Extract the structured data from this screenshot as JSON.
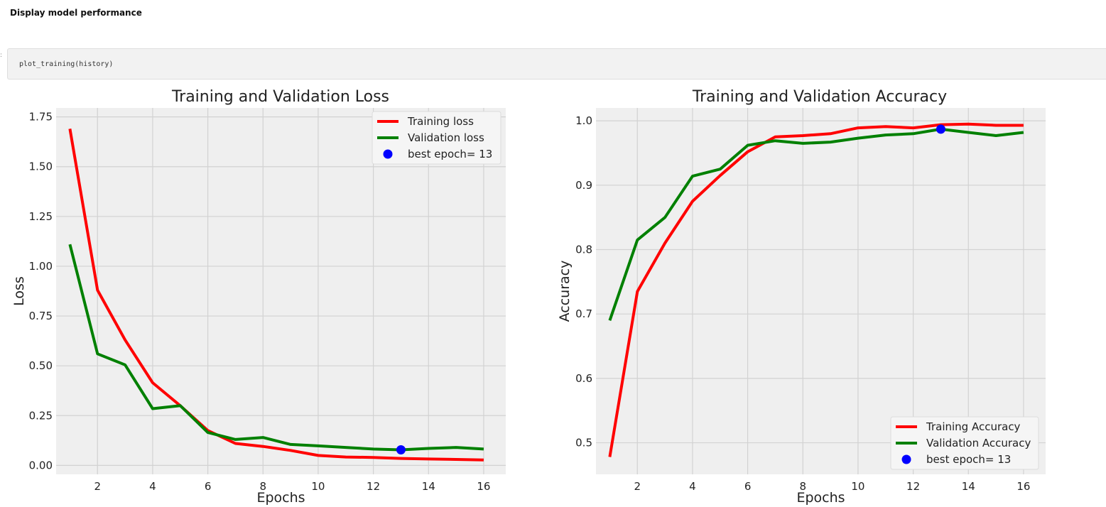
{
  "header": {
    "title": "Display model performance"
  },
  "code_cell": {
    "code": "plot_training(history)"
  },
  "colors": {
    "training": "#ff0000",
    "validation": "#008000",
    "best": "#0000ff",
    "plot_bg": "#efefef",
    "grid": "#d2d2d2"
  },
  "chart_data": [
    {
      "type": "line",
      "title": "Training and Validation Loss",
      "xlabel": "Epochs",
      "ylabel": "Loss",
      "xlim": [
        0.5,
        16.8
      ],
      "ylim": [
        -0.045,
        1.795
      ],
      "xticks": [
        2,
        4,
        6,
        8,
        10,
        12,
        14,
        16
      ],
      "xtick_labels": [
        "2",
        "4",
        "6",
        "8",
        "10",
        "12",
        "14",
        "16"
      ],
      "yticks": [
        0.0,
        0.25,
        0.5,
        0.75,
        1.0,
        1.25,
        1.5,
        1.75
      ],
      "ytick_labels": [
        "0.00",
        "0.25",
        "0.50",
        "0.75",
        "1.00",
        "1.25",
        "1.50",
        "1.75"
      ],
      "grid": true,
      "legend_position": "top-right",
      "x": [
        1,
        2,
        3,
        4,
        5,
        6,
        7,
        8,
        9,
        10,
        11,
        12,
        13,
        14,
        15,
        16
      ],
      "series": [
        {
          "name": "Training loss",
          "color": "#ff0000",
          "values": [
            1.69,
            0.88,
            0.63,
            0.415,
            0.3,
            0.175,
            0.11,
            0.095,
            0.075,
            0.05,
            0.042,
            0.04,
            0.035,
            0.032,
            0.03,
            0.027
          ]
        },
        {
          "name": "Validation loss",
          "color": "#008000",
          "values": [
            1.11,
            0.56,
            0.505,
            0.285,
            0.3,
            0.165,
            0.13,
            0.14,
            0.105,
            0.098,
            0.09,
            0.082,
            0.078,
            0.085,
            0.09,
            0.082
          ]
        }
      ],
      "best_point": {
        "name": "best epoch= 13",
        "x": 13,
        "y": 0.078,
        "color": "#0000ff"
      }
    },
    {
      "type": "line",
      "title": "Training and Validation Accuracy",
      "xlabel": "Epochs",
      "ylabel": "Accuracy",
      "xlim": [
        0.5,
        16.8
      ],
      "ylim": [
        0.451,
        1.02
      ],
      "xticks": [
        2,
        4,
        6,
        8,
        10,
        12,
        14,
        16
      ],
      "xtick_labels": [
        "2",
        "4",
        "6",
        "8",
        "10",
        "12",
        "14",
        "16"
      ],
      "yticks": [
        0.5,
        0.6,
        0.7,
        0.8,
        0.9,
        1.0
      ],
      "ytick_labels": [
        "0.5",
        "0.6",
        "0.7",
        "0.8",
        "0.9",
        "1.0"
      ],
      "grid": true,
      "legend_position": "bottom-right",
      "x": [
        1,
        2,
        3,
        4,
        5,
        6,
        7,
        8,
        9,
        10,
        11,
        12,
        13,
        14,
        15,
        16
      ],
      "series": [
        {
          "name": "Training Accuracy",
          "color": "#ff0000",
          "values": [
            0.478,
            0.735,
            0.81,
            0.875,
            0.915,
            0.952,
            0.975,
            0.977,
            0.98,
            0.989,
            0.991,
            0.989,
            0.994,
            0.995,
            0.993,
            0.993
          ]
        },
        {
          "name": "Validation Accuracy",
          "color": "#008000",
          "values": [
            0.69,
            0.815,
            0.85,
            0.914,
            0.925,
            0.962,
            0.969,
            0.965,
            0.967,
            0.973,
            0.978,
            0.98,
            0.987,
            0.982,
            0.977,
            0.982
          ]
        }
      ],
      "best_point": {
        "name": "best epoch= 13",
        "x": 13,
        "y": 0.987,
        "color": "#0000ff"
      }
    }
  ]
}
